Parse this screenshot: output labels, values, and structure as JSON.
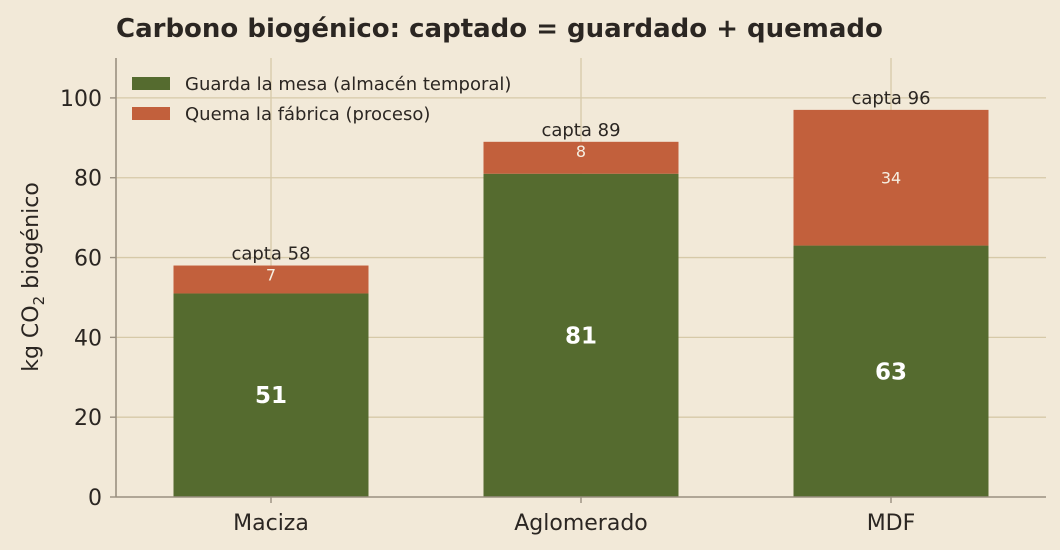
{
  "chart_data": {
    "type": "bar",
    "stacked": true,
    "title": "Carbono biogénico: captado = guardado + quemado",
    "ylabel_main": "kg CO",
    "ylabel_sub": "2",
    "ylabel_tail": " biogénico",
    "xlabel": "",
    "ylim": [
      0,
      110
    ],
    "yticks": [
      0,
      20,
      40,
      60,
      80,
      100
    ],
    "grid": true,
    "legend_position": "top-left",
    "categories": [
      "Maciza",
      "Aglomerado",
      "MDF"
    ],
    "series": [
      {
        "name": "Guarda la mesa (almacén temporal)",
        "color": "#556b2f",
        "values": [
          51,
          81,
          63
        ]
      },
      {
        "name": "Quema la fábrica (proceso)",
        "color": "#c2603c",
        "values": [
          7,
          8,
          34
        ]
      }
    ],
    "totals": [
      58,
      89,
      96
    ],
    "total_label_prefix": "capta"
  }
}
